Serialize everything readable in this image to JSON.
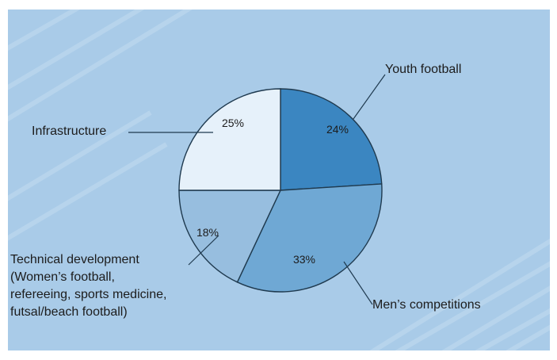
{
  "chart_data": {
    "type": "pie",
    "title": "",
    "start_angle_deg": 0,
    "direction": "clockwise",
    "slices": [
      {
        "label_lines": [
          "Youth football"
        ],
        "value": 24,
        "value_label": "24%",
        "color": "#3b86c1"
      },
      {
        "label_lines": [
          "Men’s competitions"
        ],
        "value": 33,
        "value_label": "33%",
        "color": "#6fa8d4"
      },
      {
        "label_lines": [
          "Technical development",
          "(Women’s football,",
          "refereeing, sports medicine,",
          "futsal/beach football)"
        ],
        "value": 18,
        "value_label": "18%",
        "color": "#97bedf"
      },
      {
        "label_lines": [
          "Infrastructure"
        ],
        "value": 25,
        "value_label": "25%",
        "color": "#e6f1fa"
      }
    ]
  },
  "colors": {
    "background": "#a9cbe8",
    "outline": "#1f3a4f",
    "stripe": "#c3dcf0"
  }
}
